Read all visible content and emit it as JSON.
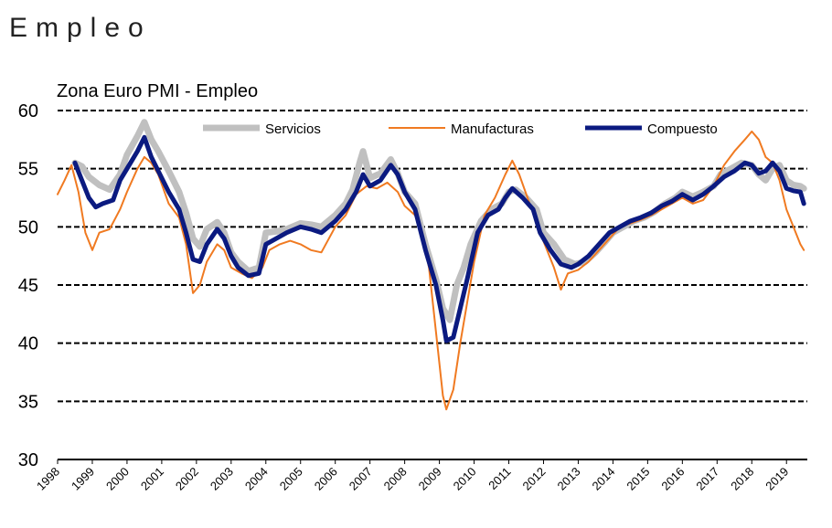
{
  "header": {
    "title": "Empleo"
  },
  "chart_data": {
    "type": "line",
    "title": "Zona Euro PMI  - Empleo",
    "xlabel": "",
    "ylabel": "",
    "ylim": [
      30,
      60
    ],
    "yticks": [
      30,
      35,
      40,
      45,
      50,
      55,
      60
    ],
    "xlim": [
      1998.0,
      2019.6
    ],
    "xticks": [
      "1998",
      "1999",
      "2000",
      "2001",
      "2002",
      "2003",
      "2004",
      "2005",
      "2006",
      "2007",
      "2008",
      "2009",
      "2010",
      "2011",
      "2012",
      "2013",
      "2014",
      "2015",
      "2016",
      "2017",
      "2018",
      "2019"
    ],
    "grid": "horizontal dashed",
    "legend": "top",
    "colors": {
      "servicios": "#c0c0c0",
      "manufacturas": "#f07a21",
      "compuesto": "#0b1a80"
    },
    "series": [
      {
        "name": "Servicios",
        "points": [
          [
            1998.5,
            55.5
          ],
          [
            1998.7,
            55.2
          ],
          [
            1998.9,
            54.3
          ],
          [
            1999.2,
            53.6
          ],
          [
            1999.5,
            53.2
          ],
          [
            1999.8,
            54.5
          ],
          [
            2000.0,
            56.2
          ],
          [
            2000.3,
            57.8
          ],
          [
            2000.5,
            59.0
          ],
          [
            2000.7,
            57.5
          ],
          [
            2000.9,
            56.5
          ],
          [
            2001.2,
            54.8
          ],
          [
            2001.5,
            53.0
          ],
          [
            2001.7,
            51.2
          ],
          [
            2001.9,
            49.0
          ],
          [
            2002.1,
            48.3
          ],
          [
            2002.3,
            49.8
          ],
          [
            2002.6,
            50.4
          ],
          [
            2002.8,
            49.5
          ],
          [
            2003.0,
            47.8
          ],
          [
            2003.2,
            47.0
          ],
          [
            2003.5,
            46.2
          ],
          [
            2003.8,
            46.5
          ],
          [
            2004.0,
            49.5
          ],
          [
            2004.3,
            49.6
          ],
          [
            2004.6,
            49.8
          ],
          [
            2005.0,
            50.3
          ],
          [
            2005.3,
            50.2
          ],
          [
            2005.6,
            50.0
          ],
          [
            2006.0,
            51.0
          ],
          [
            2006.3,
            52.0
          ],
          [
            2006.5,
            53.2
          ],
          [
            2006.7,
            55.5
          ],
          [
            2006.8,
            56.5
          ],
          [
            2007.0,
            54.2
          ],
          [
            2007.3,
            54.6
          ],
          [
            2007.6,
            55.8
          ],
          [
            2007.8,
            54.6
          ],
          [
            2008.0,
            53.0
          ],
          [
            2008.3,
            52.0
          ],
          [
            2008.6,
            48.5
          ],
          [
            2008.9,
            45.5
          ],
          [
            2009.1,
            43.0
          ],
          [
            2009.3,
            42.0
          ],
          [
            2009.5,
            45.0
          ],
          [
            2009.7,
            46.5
          ],
          [
            2009.9,
            48.5
          ],
          [
            2010.2,
            50.5
          ],
          [
            2010.5,
            51.5
          ],
          [
            2010.8,
            52.0
          ],
          [
            2011.0,
            53.0
          ],
          [
            2011.2,
            53.2
          ],
          [
            2011.5,
            52.5
          ],
          [
            2011.8,
            51.5
          ],
          [
            2012.0,
            49.5
          ],
          [
            2012.3,
            48.5
          ],
          [
            2012.6,
            47.2
          ],
          [
            2012.9,
            46.8
          ],
          [
            2013.2,
            47.0
          ],
          [
            2013.5,
            47.8
          ],
          [
            2013.8,
            48.8
          ],
          [
            2014.0,
            49.5
          ],
          [
            2014.3,
            50.0
          ],
          [
            2014.6,
            50.5
          ],
          [
            2014.9,
            50.8
          ],
          [
            2015.2,
            51.3
          ],
          [
            2015.5,
            52.0
          ],
          [
            2015.8,
            52.5
          ],
          [
            2016.0,
            53.0
          ],
          [
            2016.3,
            52.6
          ],
          [
            2016.6,
            53.0
          ],
          [
            2016.9,
            53.5
          ],
          [
            2017.1,
            54.5
          ],
          [
            2017.4,
            55.0
          ],
          [
            2017.7,
            55.5
          ],
          [
            2018.0,
            55.3
          ],
          [
            2018.2,
            54.5
          ],
          [
            2018.4,
            54.0
          ],
          [
            2018.6,
            55.0
          ],
          [
            2018.8,
            55.3
          ],
          [
            2019.0,
            54.0
          ],
          [
            2019.2,
            53.6
          ],
          [
            2019.4,
            53.5
          ],
          [
            2019.5,
            53.3
          ]
        ]
      },
      {
        "name": "Manufacturas",
        "points": [
          [
            1998.0,
            52.8
          ],
          [
            1998.2,
            54.0
          ],
          [
            1998.4,
            55.3
          ],
          [
            1998.6,
            53.0
          ],
          [
            1998.8,
            49.5
          ],
          [
            1999.0,
            48.0
          ],
          [
            1999.2,
            49.5
          ],
          [
            1999.5,
            49.8
          ],
          [
            1999.8,
            51.5
          ],
          [
            2000.0,
            53.0
          ],
          [
            2000.3,
            55.0
          ],
          [
            2000.5,
            56.0
          ],
          [
            2000.7,
            55.5
          ],
          [
            2000.9,
            54.5
          ],
          [
            2001.2,
            52.0
          ],
          [
            2001.5,
            50.8
          ],
          [
            2001.7,
            48.5
          ],
          [
            2001.9,
            44.3
          ],
          [
            2002.1,
            45.0
          ],
          [
            2002.3,
            47.0
          ],
          [
            2002.6,
            48.5
          ],
          [
            2002.8,
            48.0
          ],
          [
            2003.0,
            46.5
          ],
          [
            2003.3,
            46.0
          ],
          [
            2003.6,
            45.6
          ],
          [
            2003.9,
            46.5
          ],
          [
            2004.1,
            48.0
          ],
          [
            2004.4,
            48.5
          ],
          [
            2004.7,
            48.8
          ],
          [
            2005.0,
            48.5
          ],
          [
            2005.3,
            48.0
          ],
          [
            2005.6,
            47.8
          ],
          [
            2006.0,
            50.0
          ],
          [
            2006.3,
            51.0
          ],
          [
            2006.6,
            52.8
          ],
          [
            2006.9,
            53.5
          ],
          [
            2007.2,
            53.3
          ],
          [
            2007.5,
            53.8
          ],
          [
            2007.8,
            53.0
          ],
          [
            2008.0,
            51.8
          ],
          [
            2008.3,
            51.0
          ],
          [
            2008.5,
            49.5
          ],
          [
            2008.7,
            46.5
          ],
          [
            2008.9,
            41.0
          ],
          [
            2009.1,
            35.5
          ],
          [
            2009.2,
            34.3
          ],
          [
            2009.4,
            36.0
          ],
          [
            2009.6,
            40.0
          ],
          [
            2009.8,
            43.5
          ],
          [
            2010.0,
            47.0
          ],
          [
            2010.3,
            51.0
          ],
          [
            2010.6,
            52.5
          ],
          [
            2010.9,
            54.5
          ],
          [
            2011.1,
            55.7
          ],
          [
            2011.3,
            54.5
          ],
          [
            2011.6,
            52.0
          ],
          [
            2011.9,
            49.5
          ],
          [
            2012.1,
            48.0
          ],
          [
            2012.3,
            46.5
          ],
          [
            2012.5,
            44.6
          ],
          [
            2012.7,
            46.0
          ],
          [
            2013.0,
            46.3
          ],
          [
            2013.3,
            47.0
          ],
          [
            2013.6,
            48.0
          ],
          [
            2013.9,
            49.0
          ],
          [
            2014.2,
            50.0
          ],
          [
            2014.5,
            50.3
          ],
          [
            2014.8,
            50.6
          ],
          [
            2015.1,
            51.0
          ],
          [
            2015.4,
            51.5
          ],
          [
            2015.7,
            52.0
          ],
          [
            2016.0,
            52.5
          ],
          [
            2016.3,
            52.0
          ],
          [
            2016.6,
            52.3
          ],
          [
            2016.9,
            53.5
          ],
          [
            2017.2,
            55.3
          ],
          [
            2017.5,
            56.5
          ],
          [
            2017.8,
            57.5
          ],
          [
            2018.0,
            58.2
          ],
          [
            2018.2,
            57.5
          ],
          [
            2018.4,
            56.0
          ],
          [
            2018.6,
            55.5
          ],
          [
            2018.8,
            54.0
          ],
          [
            2019.0,
            51.5
          ],
          [
            2019.2,
            50.0
          ],
          [
            2019.4,
            48.5
          ],
          [
            2019.5,
            48.0
          ]
        ]
      },
      {
        "name": "Compuesto",
        "points": [
          [
            1998.5,
            55.5
          ],
          [
            1998.7,
            54.0
          ],
          [
            1998.9,
            52.5
          ],
          [
            1999.1,
            51.7
          ],
          [
            1999.3,
            52.0
          ],
          [
            1999.6,
            52.3
          ],
          [
            1999.8,
            54.0
          ],
          [
            2000.0,
            55.0
          ],
          [
            2000.3,
            56.5
          ],
          [
            2000.5,
            57.7
          ],
          [
            2000.7,
            56.0
          ],
          [
            2000.9,
            54.8
          ],
          [
            2001.2,
            53.0
          ],
          [
            2001.5,
            51.5
          ],
          [
            2001.7,
            49.5
          ],
          [
            2001.9,
            47.2
          ],
          [
            2002.1,
            47.0
          ],
          [
            2002.3,
            48.5
          ],
          [
            2002.6,
            49.8
          ],
          [
            2002.8,
            49.0
          ],
          [
            2003.0,
            47.5
          ],
          [
            2003.2,
            46.5
          ],
          [
            2003.5,
            45.8
          ],
          [
            2003.8,
            46.0
          ],
          [
            2004.0,
            48.5
          ],
          [
            2004.3,
            49.0
          ],
          [
            2004.6,
            49.5
          ],
          [
            2005.0,
            50.0
          ],
          [
            2005.3,
            49.8
          ],
          [
            2005.6,
            49.5
          ],
          [
            2006.0,
            50.5
          ],
          [
            2006.3,
            51.5
          ],
          [
            2006.6,
            53.0
          ],
          [
            2006.8,
            54.5
          ],
          [
            2007.0,
            53.5
          ],
          [
            2007.3,
            54.0
          ],
          [
            2007.6,
            55.3
          ],
          [
            2007.8,
            54.5
          ],
          [
            2008.0,
            53.0
          ],
          [
            2008.3,
            51.5
          ],
          [
            2008.6,
            48.0
          ],
          [
            2008.9,
            45.0
          ],
          [
            2009.1,
            42.0
          ],
          [
            2009.2,
            40.2
          ],
          [
            2009.4,
            40.5
          ],
          [
            2009.6,
            43.0
          ],
          [
            2009.8,
            45.5
          ],
          [
            2010.1,
            49.5
          ],
          [
            2010.4,
            51.0
          ],
          [
            2010.7,
            51.5
          ],
          [
            2010.9,
            52.5
          ],
          [
            2011.1,
            53.3
          ],
          [
            2011.4,
            52.5
          ],
          [
            2011.7,
            51.5
          ],
          [
            2011.9,
            49.5
          ],
          [
            2012.2,
            48.0
          ],
          [
            2012.5,
            46.8
          ],
          [
            2012.8,
            46.5
          ],
          [
            2013.0,
            46.8
          ],
          [
            2013.3,
            47.5
          ],
          [
            2013.6,
            48.5
          ],
          [
            2013.9,
            49.5
          ],
          [
            2014.2,
            50.0
          ],
          [
            2014.5,
            50.5
          ],
          [
            2014.8,
            50.8
          ],
          [
            2015.1,
            51.2
          ],
          [
            2015.4,
            51.8
          ],
          [
            2015.7,
            52.2
          ],
          [
            2016.0,
            52.8
          ],
          [
            2016.3,
            52.3
          ],
          [
            2016.6,
            52.8
          ],
          [
            2016.9,
            53.5
          ],
          [
            2017.2,
            54.3
          ],
          [
            2017.5,
            54.8
          ],
          [
            2017.8,
            55.5
          ],
          [
            2018.0,
            55.3
          ],
          [
            2018.2,
            54.6
          ],
          [
            2018.4,
            54.8
          ],
          [
            2018.6,
            55.5
          ],
          [
            2018.8,
            54.8
          ],
          [
            2019.0,
            53.3
          ],
          [
            2019.2,
            53.1
          ],
          [
            2019.4,
            53.0
          ],
          [
            2019.5,
            52.0
          ]
        ]
      }
    ]
  }
}
